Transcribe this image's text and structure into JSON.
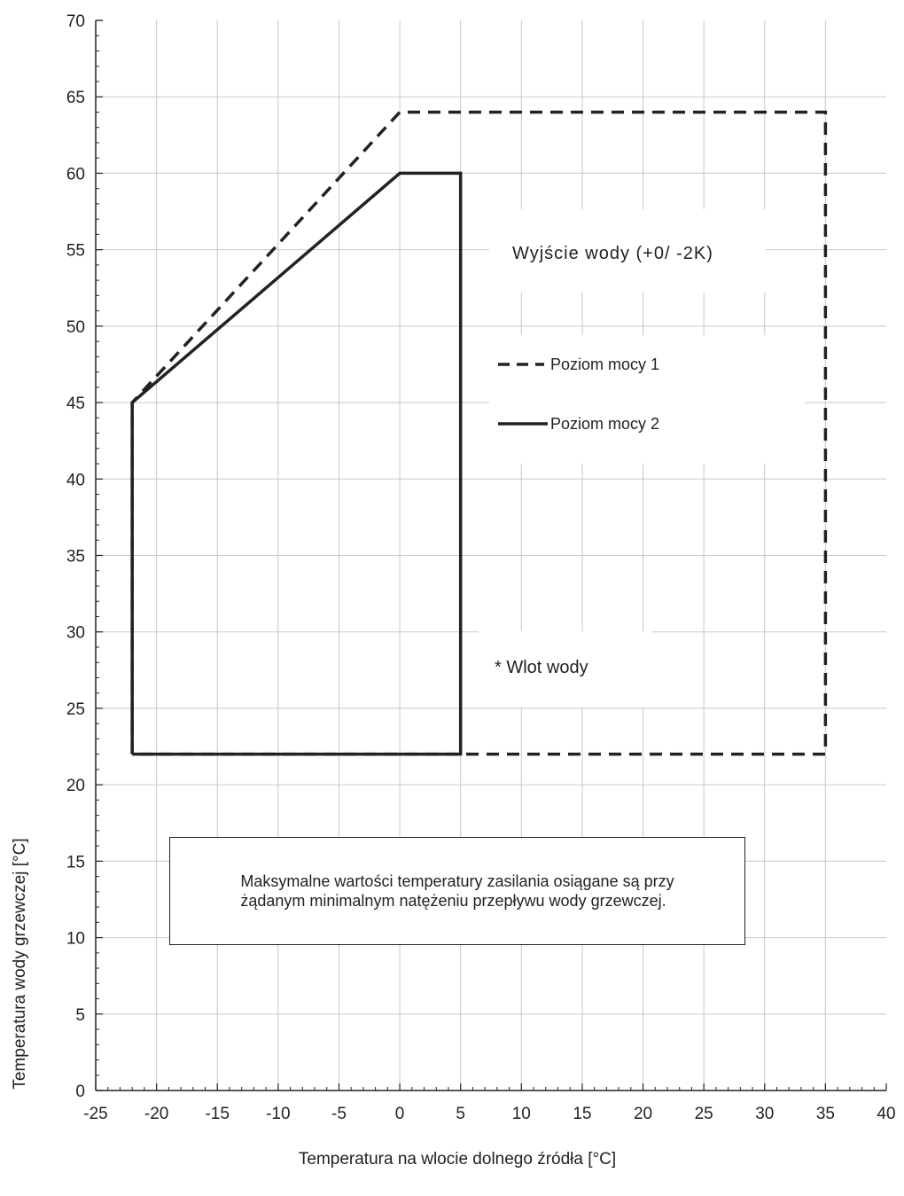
{
  "chart_data": {
    "type": "line",
    "xlabel": "Temperatura na wlocie dolnego źródła [°C]",
    "ylabel": "Temperatura wody grzewczej [°C]",
    "xlim": [
      -25,
      40
    ],
    "ylim": [
      0,
      70
    ],
    "x_ticks": [
      "-25",
      "-20",
      "-15",
      "-10",
      "-5",
      "0",
      "5",
      "10",
      "15",
      "20",
      "25",
      "30",
      "35",
      "40"
    ],
    "y_ticks": [
      "0",
      "5",
      "10",
      "15",
      "20",
      "25",
      "30",
      "35",
      "40",
      "45",
      "50",
      "55",
      "60",
      "65",
      "70"
    ],
    "grid": true,
    "series": [
      {
        "name": "Poziom mocy 1",
        "style": "dashed",
        "color": "#222222",
        "points": [
          [
            -22,
            22
          ],
          [
            -22,
            45
          ],
          [
            0,
            64
          ],
          [
            35,
            64
          ],
          [
            35,
            22
          ],
          [
            -22,
            22
          ]
        ]
      },
      {
        "name": "Poziom mocy 2",
        "style": "solid",
        "color": "#222222",
        "points": [
          [
            -22,
            22
          ],
          [
            -22,
            45
          ],
          [
            0,
            60
          ],
          [
            5,
            60
          ],
          [
            5,
            22
          ],
          [
            -22,
            22
          ]
        ]
      }
    ],
    "annotations": {
      "title_text": "Wyjście wody (+0/ -2K)",
      "inlet_text": "* Wlot wody"
    },
    "note": {
      "line1": "Maksymalne wartości temperatury zasilania osiągane są przy",
      "line2": "żądanym minimalnym natężeniu przepływu wody grzewczej."
    }
  }
}
